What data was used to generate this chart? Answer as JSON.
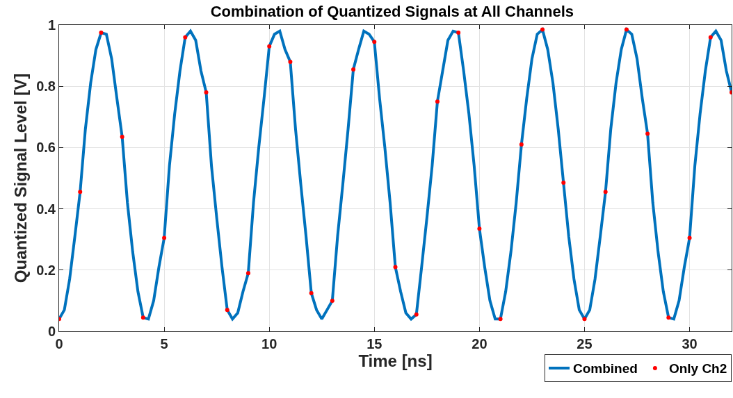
{
  "chart_data": {
    "type": "line",
    "title": "Combination of Quantized Signals at All Channels",
    "xlabel": "Time [ns]",
    "ylabel": "Quantized Signal Level [V]",
    "xlim": [
      0,
      32
    ],
    "xticks": [
      0,
      5,
      10,
      15,
      20,
      25,
      30
    ],
    "ylim": [
      0,
      1
    ],
    "yticks": [
      0,
      0.2,
      0.4,
      0.6,
      0.8,
      1
    ],
    "grid": true,
    "legend": "bottom right",
    "line_style": "solid",
    "series": [
      {
        "name": "Combined",
        "marker": "none",
        "color": "#0072bd",
        "x": [
          0,
          0.25,
          0.5,
          0.75,
          1,
          1.25,
          1.5,
          1.75,
          2,
          2.25,
          2.5,
          2.75,
          3,
          3.25,
          3.5,
          3.75,
          4,
          4.25,
          4.5,
          4.75,
          5,
          5.25,
          5.5,
          5.75,
          6,
          6.25,
          6.5,
          6.75,
          7,
          7.25,
          7.5,
          7.75,
          8,
          8.25,
          8.5,
          8.75,
          9,
          9.25,
          9.5,
          9.75,
          10,
          10.25,
          10.5,
          10.75,
          11,
          11.25,
          11.5,
          11.75,
          12,
          12.25,
          12.5,
          12.75,
          13,
          13.25,
          13.5,
          13.75,
          14,
          14.25,
          14.5,
          14.75,
          15,
          15.25,
          15.5,
          15.75,
          16,
          16.25,
          16.5,
          16.75,
          17,
          17.25,
          17.5,
          17.75,
          18,
          18.25,
          18.5,
          18.75,
          19,
          19.25,
          19.5,
          19.75,
          20,
          20.25,
          20.5,
          20.75,
          21,
          21.25,
          21.5,
          21.75,
          22,
          22.25,
          22.5,
          22.75,
          23,
          23.25,
          23.5,
          23.75,
          24,
          24.25,
          24.5,
          24.75,
          25,
          25.25,
          25.5,
          25.75,
          26,
          26.25,
          26.5,
          26.75,
          27,
          27.25,
          27.5,
          27.75,
          28,
          28.25,
          28.5,
          28.75,
          29,
          29.25,
          29.5,
          29.75,
          30,
          30.25,
          30.5,
          30.75,
          31,
          31.25,
          31.5,
          31.75,
          32
        ],
        "values": [
          0.04,
          0.07,
          0.17,
          0.31,
          0.455,
          0.66,
          0.81,
          0.92,
          0.975,
          0.97,
          0.89,
          0.76,
          0.635,
          0.42,
          0.26,
          0.13,
          0.045,
          0.04,
          0.1,
          0.21,
          0.305,
          0.54,
          0.71,
          0.85,
          0.96,
          0.98,
          0.95,
          0.85,
          0.78,
          0.54,
          0.37,
          0.21,
          0.07,
          0.04,
          0.06,
          0.13,
          0.19,
          0.42,
          0.6,
          0.76,
          0.93,
          0.97,
          0.98,
          0.92,
          0.88,
          0.66,
          0.48,
          0.31,
          0.125,
          0.07,
          0.04,
          0.07,
          0.1,
          0.31,
          0.48,
          0.66,
          0.855,
          0.92,
          0.98,
          0.97,
          0.945,
          0.76,
          0.6,
          0.42,
          0.21,
          0.13,
          0.06,
          0.04,
          0.055,
          0.21,
          0.37,
          0.54,
          0.75,
          0.85,
          0.95,
          0.98,
          0.975,
          0.85,
          0.71,
          0.54,
          0.335,
          0.21,
          0.1,
          0.04,
          0.04,
          0.13,
          0.26,
          0.42,
          0.61,
          0.76,
          0.89,
          0.97,
          0.985,
          0.92,
          0.81,
          0.66,
          0.485,
          0.31,
          0.17,
          0.07,
          0.04,
          0.07,
          0.17,
          0.31,
          0.455,
          0.66,
          0.81,
          0.92,
          0.985,
          0.97,
          0.89,
          0.76,
          0.645,
          0.42,
          0.26,
          0.13,
          0.045,
          0.04,
          0.1,
          0.21,
          0.305,
          0.54,
          0.71,
          0.85,
          0.96,
          0.98,
          0.95,
          0.85,
          0.78
        ]
      },
      {
        "name": "Only Ch2",
        "type": "scatter",
        "marker": "circle",
        "color": "#ff0000",
        "x": [
          0,
          1,
          2,
          3,
          4,
          5,
          6,
          7,
          8,
          9,
          10,
          11,
          12,
          13,
          14,
          15,
          16,
          17,
          18,
          19,
          20,
          21,
          22,
          23,
          24,
          25,
          26,
          27,
          28,
          29,
          30,
          31,
          32
        ],
        "values": [
          0.04,
          0.455,
          0.975,
          0.635,
          0.045,
          0.305,
          0.96,
          0.78,
          0.07,
          0.19,
          0.93,
          0.88,
          0.125,
          0.1,
          0.855,
          0.945,
          0.21,
          0.055,
          0.75,
          0.975,
          0.335,
          0.04,
          0.61,
          0.985,
          0.485,
          0.04,
          0.455,
          0.985,
          0.645,
          0.045,
          0.305,
          0.96,
          0.78
        ]
      }
    ]
  }
}
